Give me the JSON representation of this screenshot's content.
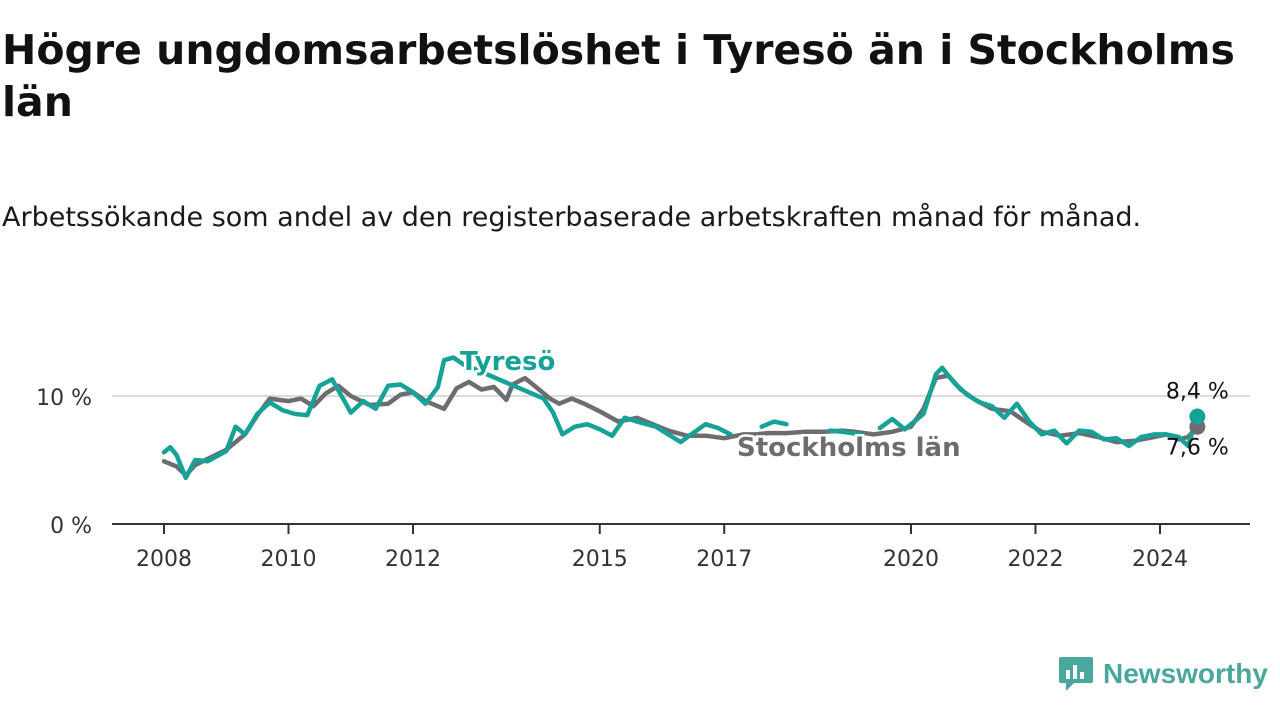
{
  "title": "Högre ungdomsarbetslöshet i Tyresö än i Stockholms län",
  "subtitle": "Arbetssökande som andel av den registerbaserade arbetskraften månad för månad.",
  "brand": {
    "name": "Newsworthy",
    "icon": "newsworthy-logo-icon",
    "color": "#4aa79c"
  },
  "chart_data": {
    "type": "line",
    "ylabel": "",
    "xlabel": "",
    "ylim": [
      0,
      13
    ],
    "xlim": [
      2007.7,
      2025.7
    ],
    "y_ticks": [
      {
        "value": 0,
        "label": "0 %"
      },
      {
        "value": 10,
        "label": "10 %"
      }
    ],
    "x_ticks": [
      {
        "value": 2008,
        "label": "2008"
      },
      {
        "value": 2010,
        "label": "2010"
      },
      {
        "value": 2012,
        "label": "2012"
      },
      {
        "value": 2015,
        "label": "2015"
      },
      {
        "value": 2017,
        "label": "2017"
      },
      {
        "value": 2020,
        "label": "2020"
      },
      {
        "value": 2022,
        "label": "2022"
      },
      {
        "value": 2024,
        "label": "2024"
      }
    ],
    "grid": true,
    "series": [
      {
        "name": "Stockholms län",
        "label": "Stockholms län",
        "color": "#6e6c70",
        "end_label": "7,6 %",
        "points": [
          [
            2008.0,
            4.9
          ],
          [
            2008.2,
            4.5
          ],
          [
            2008.35,
            3.8
          ],
          [
            2008.5,
            4.6
          ],
          [
            2008.75,
            5.2
          ],
          [
            2009.0,
            5.8
          ],
          [
            2009.3,
            7.0
          ],
          [
            2009.5,
            8.5
          ],
          [
            2009.7,
            9.8
          ],
          [
            2010.0,
            9.6
          ],
          [
            2010.2,
            9.8
          ],
          [
            2010.4,
            9.2
          ],
          [
            2010.6,
            10.2
          ],
          [
            2010.8,
            10.8
          ],
          [
            2011.0,
            10.0
          ],
          [
            2011.3,
            9.3
          ],
          [
            2011.6,
            9.4
          ],
          [
            2011.8,
            10.1
          ],
          [
            2012.0,
            10.3
          ],
          [
            2012.2,
            9.6
          ],
          [
            2012.5,
            9.0
          ],
          [
            2012.7,
            10.6
          ],
          [
            2012.9,
            11.1
          ],
          [
            2013.1,
            10.5
          ],
          [
            2013.3,
            10.7
          ],
          [
            2013.5,
            9.7
          ],
          [
            2013.6,
            10.9
          ],
          [
            2013.8,
            11.4
          ],
          [
            2014.0,
            10.6
          ],
          [
            2014.2,
            9.8
          ],
          [
            2014.35,
            9.4
          ],
          [
            2014.55,
            9.8
          ],
          [
            2014.75,
            9.4
          ],
          [
            2015.0,
            8.8
          ],
          [
            2015.3,
            8.0
          ],
          [
            2015.6,
            8.3
          ],
          [
            2015.9,
            7.7
          ],
          [
            2016.1,
            7.3
          ],
          [
            2016.4,
            6.9
          ],
          [
            2016.7,
            6.9
          ],
          [
            2017.0,
            6.7
          ],
          [
            2017.3,
            7.0
          ],
          [
            2017.5,
            7.0
          ],
          [
            2017.7,
            7.1
          ],
          [
            2018.0,
            7.1
          ],
          [
            2018.3,
            7.2
          ],
          [
            2018.6,
            7.2
          ],
          [
            2018.9,
            7.3
          ],
          [
            2019.1,
            7.2
          ],
          [
            2019.4,
            7.0
          ],
          [
            2019.7,
            7.2
          ],
          [
            2020.0,
            7.6
          ],
          [
            2020.2,
            9.0
          ],
          [
            2020.4,
            11.4
          ],
          [
            2020.6,
            11.6
          ],
          [
            2020.8,
            10.5
          ],
          [
            2021.0,
            9.8
          ],
          [
            2021.3,
            9.0
          ],
          [
            2021.6,
            8.8
          ],
          [
            2021.9,
            7.8
          ],
          [
            2022.1,
            7.2
          ],
          [
            2022.4,
            6.9
          ],
          [
            2022.7,
            7.1
          ],
          [
            2023.0,
            6.8
          ],
          [
            2023.3,
            6.4
          ],
          [
            2023.6,
            6.5
          ],
          [
            2023.9,
            6.8
          ],
          [
            2024.1,
            7.0
          ],
          [
            2024.3,
            6.6
          ],
          [
            2024.45,
            6.8
          ],
          [
            2024.6,
            7.6
          ]
        ]
      },
      {
        "name": "Tyresö",
        "label": "Tyresö",
        "color": "#16a297",
        "end_label": "8,4 %",
        "points": [
          [
            2008.0,
            5.6
          ],
          [
            2008.1,
            6.0
          ],
          [
            2008.2,
            5.4
          ],
          [
            2008.35,
            3.6
          ],
          [
            2008.5,
            5.0
          ],
          [
            2008.7,
            4.9
          ],
          [
            2009.0,
            5.7
          ],
          [
            2009.15,
            7.6
          ],
          [
            2009.3,
            7.0
          ],
          [
            2009.5,
            8.6
          ],
          [
            2009.7,
            9.5
          ],
          [
            2009.9,
            8.9
          ],
          [
            2010.1,
            8.6
          ],
          [
            2010.3,
            8.5
          ],
          [
            2010.5,
            10.8
          ],
          [
            2010.7,
            11.3
          ],
          [
            2010.9,
            9.6
          ],
          [
            2011.0,
            8.7
          ],
          [
            2011.2,
            9.6
          ],
          [
            2011.4,
            9.0
          ],
          [
            2011.6,
            10.8
          ],
          [
            2011.8,
            10.9
          ],
          [
            2012.0,
            10.3
          ],
          [
            2012.2,
            9.4
          ],
          [
            2012.4,
            10.7
          ],
          [
            2012.5,
            12.8
          ],
          [
            2012.65,
            13.0
          ],
          [
            2012.8,
            12.5
          ],
          [
            2014.1,
            9.8
          ],
          [
            2014.25,
            8.7
          ],
          [
            2014.4,
            7.0
          ],
          [
            2014.6,
            7.6
          ],
          [
            2014.8,
            7.8
          ],
          [
            2015.0,
            7.4
          ],
          [
            2015.2,
            6.9
          ],
          [
            2015.4,
            8.3
          ],
          [
            2015.6,
            8.0
          ],
          [
            2015.9,
            7.6
          ],
          [
            2016.1,
            7.0
          ],
          [
            2016.3,
            6.4
          ],
          [
            2016.5,
            7.1
          ],
          [
            2016.7,
            7.8
          ],
          [
            2016.9,
            7.5
          ],
          [
            2017.1,
            7.0
          ],
          [
            2017.3,
            null
          ],
          [
            2017.6,
            7.6
          ],
          [
            2017.8,
            8.0
          ],
          [
            2018.0,
            7.8
          ],
          [
            2018.1,
            null
          ],
          [
            2018.7,
            7.3
          ],
          [
            2018.9,
            7.2
          ],
          [
            2019.2,
            7.0
          ],
          [
            2019.4,
            null
          ],
          [
            2019.5,
            7.5
          ],
          [
            2019.7,
            8.2
          ],
          [
            2019.9,
            7.4
          ],
          [
            2020.0,
            7.8
          ],
          [
            2020.2,
            8.6
          ],
          [
            2020.4,
            11.7
          ],
          [
            2020.5,
            12.2
          ],
          [
            2020.7,
            11.0
          ],
          [
            2020.9,
            10.1
          ],
          [
            2021.1,
            9.5
          ],
          [
            2021.3,
            9.2
          ],
          [
            2021.5,
            8.3
          ],
          [
            2021.7,
            9.4
          ],
          [
            2021.9,
            8.0
          ],
          [
            2022.1,
            7.0
          ],
          [
            2022.3,
            7.3
          ],
          [
            2022.5,
            6.3
          ],
          [
            2022.7,
            7.3
          ],
          [
            2022.9,
            7.2
          ],
          [
            2023.1,
            6.6
          ],
          [
            2023.3,
            6.7
          ],
          [
            2023.5,
            6.1
          ],
          [
            2023.7,
            6.8
          ],
          [
            2023.9,
            7.0
          ],
          [
            2024.1,
            7.0
          ],
          [
            2024.3,
            6.8
          ],
          [
            2024.45,
            6.1
          ],
          [
            2024.6,
            8.4
          ]
        ]
      }
    ]
  }
}
